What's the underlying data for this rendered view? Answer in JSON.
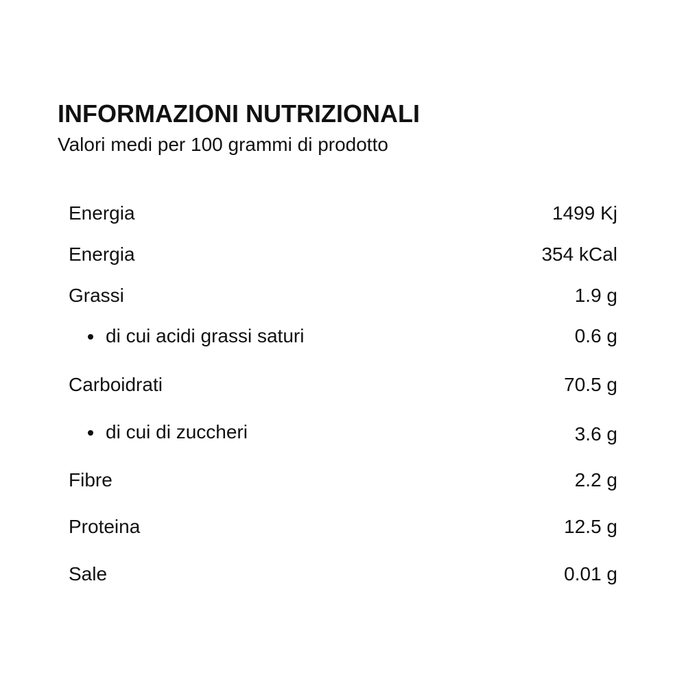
{
  "header": {
    "title": "INFORMAZIONI NUTRIZIONALI",
    "subtitle": "Valori medi per 100 grammi di prodotto"
  },
  "rows": [
    {
      "label": "Energia",
      "value": "1499 Kj"
    },
    {
      "label": "Energia",
      "value": "354 kCal"
    },
    {
      "label": "Grassi",
      "value": "1.9 g"
    },
    {
      "label": "di cui acidi grassi saturi",
      "value": "0.6 g",
      "sub": true
    },
    {
      "label": "Carboidrati",
      "value": "70.5 g"
    },
    {
      "label": "di cui di zuccheri",
      "value": "3.6 g",
      "sub": true
    },
    {
      "label": "Fibre",
      "value": "2.2 g"
    },
    {
      "label": "Proteina",
      "value": "12.5 g"
    },
    {
      "label": "Sale",
      "value": "0.01 g"
    }
  ]
}
